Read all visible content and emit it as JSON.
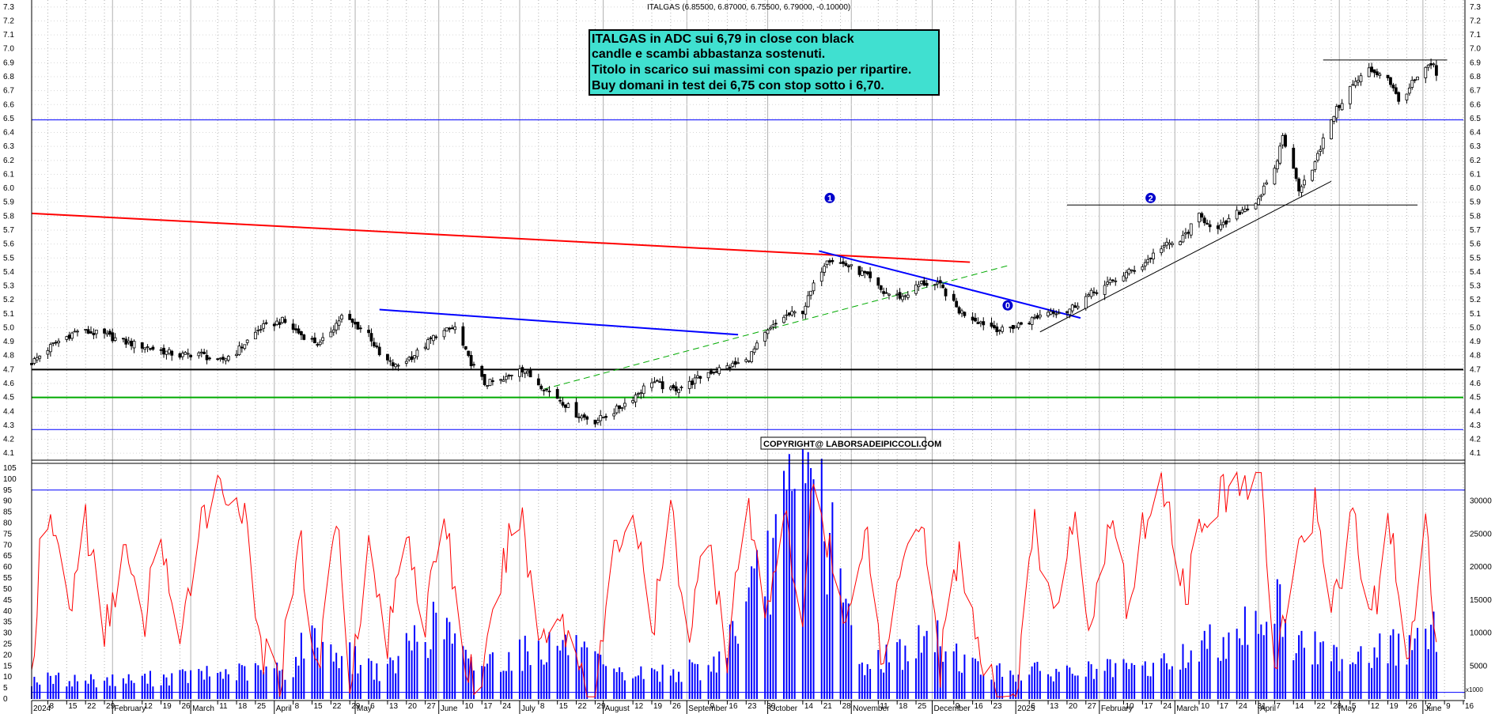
{
  "chart_data": {
    "type": "candlestick",
    "title": "ITALGAS (6.85500, 6.87000, 6.75500, 6.79000, -0.10000)",
    "comment_box": {
      "lines": [
        "ITALGAS in ADC  sui 6,79 in close con black",
        "candle e scambi abbastanza sostenuti.",
        "Titolo in scarico sui massimi con spazio per ripartire.",
        "Buy domani in test dei 6,75 con stop sotto i 6,70."
      ],
      "fill": "#40E0D0"
    },
    "copyright": "COPYRIGHT@ LABORSADEIPICCOLI.COM",
    "price_axis": {
      "ylim": [
        4.05,
        7.35
      ],
      "ticks": [
        "4.1",
        "4.2",
        "4.3",
        "4.4",
        "4.5",
        "4.6",
        "4.7",
        "4.8",
        "4.9",
        "5.0",
        "5.1",
        "5.2",
        "5.3",
        "5.4",
        "5.5",
        "5.6",
        "5.7",
        "5.8",
        "5.9",
        "6.0",
        "6.1",
        "6.2",
        "6.3",
        "6.4",
        "6.5",
        "6.6",
        "6.7",
        "6.8",
        "6.9",
        "7.0",
        "7.1",
        "7.2",
        "7.3"
      ]
    },
    "indicator_axis": {
      "ylim": [
        0,
        105
      ],
      "ticks": [
        "0",
        "5",
        "10",
        "15",
        "20",
        "25",
        "30",
        "35",
        "40",
        "45",
        "50",
        "55",
        "60",
        "65",
        "70",
        "75",
        "80",
        "85",
        "90",
        "95",
        "100",
        "105"
      ]
    },
    "volume_axis": {
      "ticks": [
        "5000",
        "10000",
        "15000",
        "20000",
        "25000",
        "30000"
      ],
      "max": 35000,
      "multiplier_label": "x1000"
    },
    "x_axis": {
      "start": "2024-01-02",
      "end": "2025-06-16",
      "labels": [
        {
          "d": "2024-01-02",
          "t": "2024"
        },
        {
          "d": "2024-01-08",
          "t": "8"
        },
        {
          "d": "2024-01-15",
          "t": "15"
        },
        {
          "d": "2024-01-22",
          "t": "22"
        },
        {
          "d": "2024-01-29",
          "t": "29"
        },
        {
          "d": "2024-02-01",
          "t": "February"
        },
        {
          "d": "2024-02-12",
          "t": "12"
        },
        {
          "d": "2024-02-19",
          "t": "19"
        },
        {
          "d": "2024-02-26",
          "t": "26"
        },
        {
          "d": "2024-03-01",
          "t": "March"
        },
        {
          "d": "2024-03-11",
          "t": "11"
        },
        {
          "d": "2024-03-18",
          "t": "18"
        },
        {
          "d": "2024-03-25",
          "t": "25"
        },
        {
          "d": "2024-04-01",
          "t": "April"
        },
        {
          "d": "2024-04-08",
          "t": "8"
        },
        {
          "d": "2024-04-15",
          "t": "15"
        },
        {
          "d": "2024-04-22",
          "t": "22"
        },
        {
          "d": "2024-04-29",
          "t": "29"
        },
        {
          "d": "2024-05-01",
          "t": "May"
        },
        {
          "d": "2024-05-06",
          "t": "6"
        },
        {
          "d": "2024-05-13",
          "t": "13"
        },
        {
          "d": "2024-05-20",
          "t": "20"
        },
        {
          "d": "2024-05-27",
          "t": "27"
        },
        {
          "d": "2024-06-01",
          "t": "June"
        },
        {
          "d": "2024-06-10",
          "t": "10"
        },
        {
          "d": "2024-06-17",
          "t": "17"
        },
        {
          "d": "2024-06-24",
          "t": "24"
        },
        {
          "d": "2024-07-01",
          "t": "July"
        },
        {
          "d": "2024-07-08",
          "t": "8"
        },
        {
          "d": "2024-07-15",
          "t": "15"
        },
        {
          "d": "2024-07-22",
          "t": "22"
        },
        {
          "d": "2024-07-29",
          "t": "29"
        },
        {
          "d": "2024-08-01",
          "t": "August"
        },
        {
          "d": "2024-08-12",
          "t": "12"
        },
        {
          "d": "2024-08-19",
          "t": "19"
        },
        {
          "d": "2024-08-26",
          "t": "26"
        },
        {
          "d": "2024-09-01",
          "t": "September"
        },
        {
          "d": "2024-09-09",
          "t": "9"
        },
        {
          "d": "2024-09-16",
          "t": "16"
        },
        {
          "d": "2024-09-23",
          "t": "23"
        },
        {
          "d": "2024-09-30",
          "t": "30"
        },
        {
          "d": "2024-10-01",
          "t": "October"
        },
        {
          "d": "2024-10-14",
          "t": "14"
        },
        {
          "d": "2024-10-21",
          "t": "21"
        },
        {
          "d": "2024-10-28",
          "t": "28"
        },
        {
          "d": "2024-11-01",
          "t": "November"
        },
        {
          "d": "2024-11-11",
          "t": "11"
        },
        {
          "d": "2024-11-18",
          "t": "18"
        },
        {
          "d": "2024-11-25",
          "t": "25"
        },
        {
          "d": "2024-12-01",
          "t": "December"
        },
        {
          "d": "2024-12-09",
          "t": "9"
        },
        {
          "d": "2024-12-16",
          "t": "16"
        },
        {
          "d": "2024-12-23",
          "t": "23"
        },
        {
          "d": "2025-01-01",
          "t": "2025"
        },
        {
          "d": "2025-01-06",
          "t": "6"
        },
        {
          "d": "2025-01-13",
          "t": "13"
        },
        {
          "d": "2025-01-20",
          "t": "20"
        },
        {
          "d": "2025-01-27",
          "t": "27"
        },
        {
          "d": "2025-02-01",
          "t": "February"
        },
        {
          "d": "2025-02-10",
          "t": "10"
        },
        {
          "d": "2025-02-17",
          "t": "17"
        },
        {
          "d": "2025-02-24",
          "t": "24"
        },
        {
          "d": "2025-03-01",
          "t": "March"
        },
        {
          "d": "2025-03-10",
          "t": "10"
        },
        {
          "d": "2025-03-17",
          "t": "17"
        },
        {
          "d": "2025-03-24",
          "t": "24"
        },
        {
          "d": "2025-03-31",
          "t": "31"
        },
        {
          "d": "2025-04-01",
          "t": "April"
        },
        {
          "d": "2025-04-07",
          "t": "7"
        },
        {
          "d": "2025-04-14",
          "t": "14"
        },
        {
          "d": "2025-04-22",
          "t": "22"
        },
        {
          "d": "2025-04-28",
          "t": "28"
        },
        {
          "d": "2025-05-01",
          "t": "May"
        },
        {
          "d": "2025-05-05",
          "t": "5"
        },
        {
          "d": "2025-05-12",
          "t": "12"
        },
        {
          "d": "2025-05-19",
          "t": "19"
        },
        {
          "d": "2025-05-26",
          "t": "26"
        },
        {
          "d": "2025-06-01",
          "t": "June"
        },
        {
          "d": "2025-06-02",
          "t": "2"
        },
        {
          "d": "2025-06-09",
          "t": "9"
        },
        {
          "d": "2025-06-16",
          "t": "16"
        }
      ]
    },
    "price_anchors": [
      [
        "2024-01-02",
        4.75
      ],
      [
        "2024-01-10",
        4.88
      ],
      [
        "2024-01-19",
        4.98
      ],
      [
        "2024-01-29",
        4.95
      ],
      [
        "2024-02-05",
        4.9
      ],
      [
        "2024-02-14",
        4.86
      ],
      [
        "2024-02-26",
        4.8
      ],
      [
        "2024-03-04",
        4.82
      ],
      [
        "2024-03-11",
        4.75
      ],
      [
        "2024-03-18",
        4.83
      ],
      [
        "2024-03-27",
        5.0
      ],
      [
        "2024-04-04",
        5.05
      ],
      [
        "2024-04-11",
        4.95
      ],
      [
        "2024-04-18",
        4.88
      ],
      [
        "2024-04-26",
        5.08
      ],
      [
        "2024-05-06",
        4.96
      ],
      [
        "2024-05-10",
        4.8
      ],
      [
        "2024-05-16",
        4.72
      ],
      [
        "2024-05-24",
        4.82
      ],
      [
        "2024-05-31",
        4.95
      ],
      [
        "2024-06-07",
        5.0
      ],
      [
        "2024-06-12",
        4.78
      ],
      [
        "2024-06-18",
        4.6
      ],
      [
        "2024-06-25",
        4.62
      ],
      [
        "2024-07-01",
        4.72
      ],
      [
        "2024-07-08",
        4.6
      ],
      [
        "2024-07-15",
        4.5
      ],
      [
        "2024-07-22",
        4.38
      ],
      [
        "2024-07-29",
        4.33
      ],
      [
        "2024-08-05",
        4.4
      ],
      [
        "2024-08-12",
        4.5
      ],
      [
        "2024-08-19",
        4.62
      ],
      [
        "2024-08-26",
        4.55
      ],
      [
        "2024-09-02",
        4.6
      ],
      [
        "2024-09-09",
        4.68
      ],
      [
        "2024-09-16",
        4.72
      ],
      [
        "2024-09-23",
        4.76
      ],
      [
        "2024-09-30",
        4.95
      ],
      [
        "2024-10-07",
        5.08
      ],
      [
        "2024-10-14",
        5.12
      ],
      [
        "2024-10-18",
        5.3
      ],
      [
        "2024-10-23",
        5.5
      ],
      [
        "2024-10-30",
        5.45
      ],
      [
        "2024-11-06",
        5.38
      ],
      [
        "2024-11-13",
        5.25
      ],
      [
        "2024-11-20",
        5.22
      ],
      [
        "2024-11-27",
        5.32
      ],
      [
        "2024-12-04",
        5.3
      ],
      [
        "2024-12-11",
        5.12
      ],
      [
        "2024-12-18",
        5.05
      ],
      [
        "2024-12-27",
        4.98
      ],
      [
        "2025-01-06",
        5.05
      ],
      [
        "2025-01-13",
        5.12
      ],
      [
        "2025-01-20",
        5.12
      ],
      [
        "2025-01-27",
        5.22
      ],
      [
        "2025-02-03",
        5.3
      ],
      [
        "2025-02-10",
        5.38
      ],
      [
        "2025-02-17",
        5.45
      ],
      [
        "2025-02-24",
        5.58
      ],
      [
        "2025-03-03",
        5.62
      ],
      [
        "2025-03-10",
        5.8
      ],
      [
        "2025-03-17",
        5.7
      ],
      [
        "2025-03-24",
        5.82
      ],
      [
        "2025-03-31",
        5.9
      ],
      [
        "2025-04-07",
        6.12
      ],
      [
        "2025-04-10",
        6.38
      ],
      [
        "2025-04-16",
        6.0
      ],
      [
        "2025-04-22",
        6.18
      ],
      [
        "2025-04-28",
        6.5
      ],
      [
        "2025-05-05",
        6.72
      ],
      [
        "2025-05-12",
        6.85
      ],
      [
        "2025-05-19",
        6.8
      ],
      [
        "2025-05-23",
        6.62
      ],
      [
        "2025-05-28",
        6.75
      ],
      [
        "2025-06-02",
        6.85
      ],
      [
        "2025-06-05",
        6.89
      ],
      [
        "2025-06-06",
        6.79
      ]
    ],
    "oscillator_anchors": [
      [
        "2024-01-02",
        10
      ],
      [
        "2024-01-05",
        62
      ],
      [
        "2024-01-10",
        80
      ],
      [
        "2024-01-16",
        40
      ],
      [
        "2024-01-22",
        82
      ],
      [
        "2024-01-29",
        28
      ],
      [
        "2024-02-05",
        70
      ],
      [
        "2024-02-12",
        30
      ],
      [
        "2024-02-19",
        78
      ],
      [
        "2024-02-26",
        16
      ],
      [
        "2024-03-04",
        84
      ],
      [
        "2024-03-13",
        97
      ],
      [
        "2024-03-20",
        88
      ],
      [
        "2024-03-27",
        22
      ],
      [
        "2024-04-03",
        6
      ],
      [
        "2024-04-10",
        78
      ],
      [
        "2024-04-17",
        10
      ],
      [
        "2024-04-24",
        85
      ],
      [
        "2024-04-29",
        12
      ],
      [
        "2024-05-06",
        68
      ],
      [
        "2024-05-13",
        25
      ],
      [
        "2024-05-20",
        82
      ],
      [
        "2024-05-27",
        32
      ],
      [
        "2024-06-03",
        88
      ],
      [
        "2024-06-10",
        18
      ],
      [
        "2024-06-17",
        5
      ],
      [
        "2024-06-24",
        55
      ],
      [
        "2024-07-01",
        88
      ],
      [
        "2024-07-08",
        28
      ],
      [
        "2024-07-15",
        40
      ],
      [
        "2024-07-22",
        20
      ],
      [
        "2024-07-29",
        2
      ],
      [
        "2024-08-05",
        65
      ],
      [
        "2024-08-12",
        88
      ],
      [
        "2024-08-19",
        28
      ],
      [
        "2024-08-26",
        85
      ],
      [
        "2024-09-02",
        30
      ],
      [
        "2024-09-09",
        80
      ],
      [
        "2024-09-16",
        18
      ],
      [
        "2024-09-23",
        88
      ],
      [
        "2024-09-30",
        40
      ],
      [
        "2024-10-07",
        85
      ],
      [
        "2024-10-14",
        25
      ],
      [
        "2024-10-17",
        100
      ],
      [
        "2024-10-23",
        75
      ],
      [
        "2024-10-30",
        30
      ],
      [
        "2024-11-06",
        82
      ],
      [
        "2024-11-13",
        12
      ],
      [
        "2024-11-20",
        70
      ],
      [
        "2024-11-27",
        85
      ],
      [
        "2024-12-04",
        15
      ],
      [
        "2024-12-11",
        70
      ],
      [
        "2024-12-18",
        20
      ],
      [
        "2024-12-23",
        5
      ],
      [
        "2025-01-01",
        2
      ],
      [
        "2025-01-08",
        78
      ],
      [
        "2025-01-15",
        35
      ],
      [
        "2025-01-22",
        85
      ],
      [
        "2025-01-29",
        32
      ],
      [
        "2025-02-05",
        80
      ],
      [
        "2025-02-12",
        40
      ],
      [
        "2025-02-19",
        90
      ],
      [
        "2025-02-26",
        95
      ],
      [
        "2025-03-05",
        45
      ],
      [
        "2025-03-12",
        88
      ],
      [
        "2025-03-19",
        92
      ],
      [
        "2025-03-26",
        98
      ],
      [
        "2025-04-02",
        102
      ],
      [
        "2025-04-07",
        18
      ],
      [
        "2025-04-14",
        55
      ],
      [
        "2025-04-22",
        88
      ],
      [
        "2025-04-29",
        42
      ],
      [
        "2025-05-06",
        85
      ],
      [
        "2025-05-13",
        35
      ],
      [
        "2025-05-20",
        80
      ],
      [
        "2025-05-27",
        12
      ],
      [
        "2025-06-02",
        85
      ],
      [
        "2025-06-06",
        24
      ]
    ],
    "volume_anchors": [
      [
        "2024-01-02",
        3000
      ],
      [
        "2024-02-05",
        2800
      ],
      [
        "2024-03-11",
        3800
      ],
      [
        "2024-04-08",
        4500
      ],
      [
        "2024-04-12",
        9000
      ],
      [
        "2024-05-13",
        4000
      ],
      [
        "2024-05-24",
        9500
      ],
      [
        "2024-06-03",
        11500
      ],
      [
        "2024-06-12",
        5000
      ],
      [
        "2024-07-17",
        8500
      ],
      [
        "2024-08-05",
        3500
      ],
      [
        "2024-09-10",
        4500
      ],
      [
        "2024-09-16",
        9000
      ],
      [
        "2024-09-23",
        13000
      ],
      [
        "2024-10-17",
        35000
      ],
      [
        "2024-11-04",
        5000
      ],
      [
        "2024-12-02",
        9000
      ],
      [
        "2024-12-20",
        4000
      ],
      [
        "2025-01-06",
        4000
      ],
      [
        "2025-02-18",
        4500
      ],
      [
        "2025-03-03",
        6000
      ],
      [
        "2025-04-04",
        13000
      ],
      [
        "2025-04-09",
        15000
      ],
      [
        "2025-04-11",
        9000
      ],
      [
        "2025-04-28",
        6500
      ],
      [
        "2025-06-04",
        8500
      ],
      [
        "2025-06-06",
        11000
      ]
    ],
    "horizontal_lines": [
      {
        "price": 6.49,
        "color": "#0000FF",
        "from": "2024-01-02",
        "to": "2025-06-16",
        "width": 1
      },
      {
        "price": 4.7,
        "color": "#000000",
        "from": "2024-01-02",
        "to": "2025-06-16",
        "width": 2
      },
      {
        "price": 4.5,
        "color": "#00AA00",
        "from": "2024-01-02",
        "to": "2025-06-16",
        "width": 2
      },
      {
        "price": 4.27,
        "color": "#0000FF",
        "from": "2024-01-02",
        "to": "2025-06-16",
        "width": 1
      },
      {
        "price": 5.88,
        "color": "#000000",
        "from": "2025-01-20",
        "to": "2025-05-30",
        "width": 1
      },
      {
        "price": 6.92,
        "color": "#000000",
        "from": "2025-04-25",
        "to": "2025-06-10",
        "width": 1
      }
    ],
    "trend_lines": [
      {
        "from": [
          "2024-01-02",
          5.82
        ],
        "to": [
          "2024-12-15",
          5.47
        ],
        "color": "#FF0000",
        "width": 2,
        "dash": ""
      },
      {
        "from": [
          "2024-05-10",
          5.13
        ],
        "to": [
          "2024-09-20",
          4.95
        ],
        "color": "#0000FF",
        "width": 2,
        "dash": ""
      },
      {
        "from": [
          "2024-10-20",
          5.55
        ],
        "to": [
          "2025-01-25",
          5.07
        ],
        "color": "#0000FF",
        "width": 2,
        "dash": ""
      },
      {
        "from": [
          "2024-07-10",
          4.56
        ],
        "to": [
          "2024-12-30",
          5.45
        ],
        "color": "#00AA00",
        "width": 1,
        "dash": "8,5"
      },
      {
        "from": [
          "2025-01-10",
          4.97
        ],
        "to": [
          "2025-04-28",
          6.05
        ],
        "color": "#000000",
        "width": 1,
        "dash": ""
      }
    ],
    "wave_labels": [
      {
        "text": "1",
        "date": "2024-10-24",
        "price": 5.93
      },
      {
        "text": "2",
        "date": "2025-02-20",
        "price": 5.93
      },
      {
        "text": "0",
        "date": "2024-12-29",
        "price": 5.16
      }
    ],
    "oscillator_hlines": [
      {
        "value": 95,
        "color": "#0000FF"
      },
      {
        "value": 3,
        "color": "#0000FF"
      }
    ],
    "series_colors": {
      "oscillator": "#FF0000",
      "volume": "#0000FF",
      "candle_up": "#ffffff",
      "candle_down": "#000000"
    }
  }
}
